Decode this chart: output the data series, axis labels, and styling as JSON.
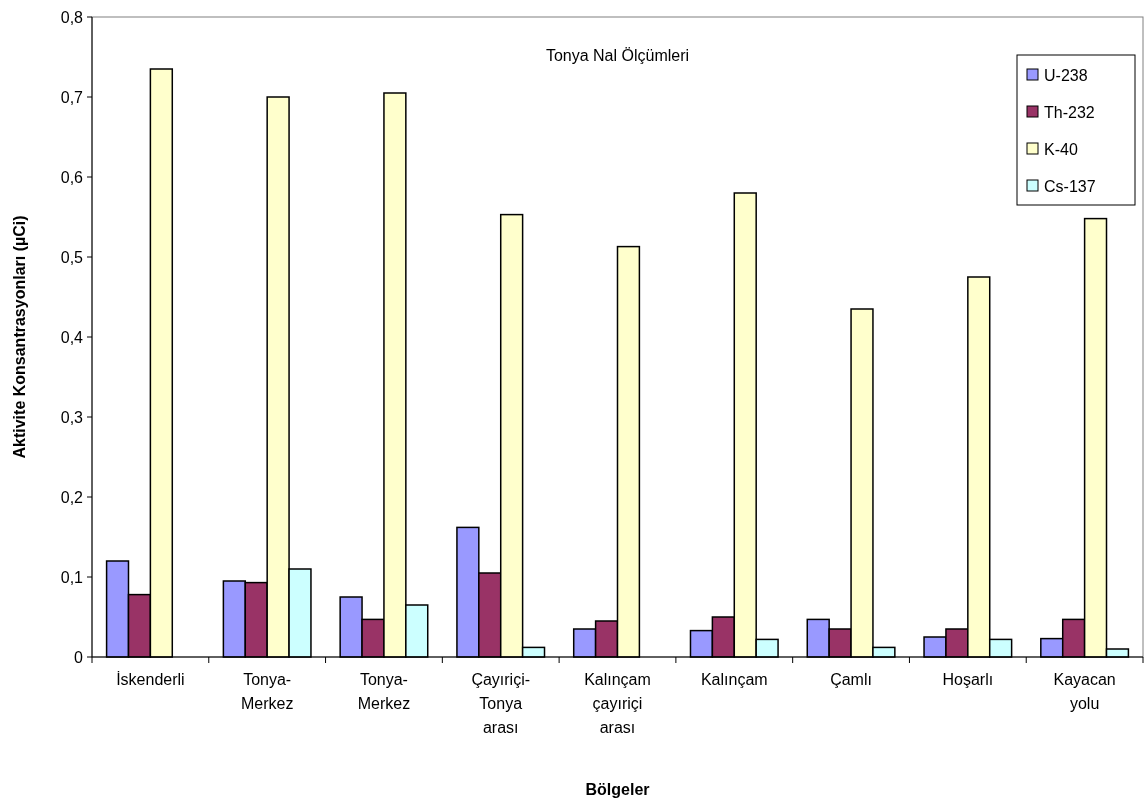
{
  "chart_data": {
    "type": "bar",
    "title": "Tonya Nal Ölçümleri",
    "xlabel": "Bölgeler",
    "ylabel": "Aktivite Konsantrasyonları (µCi)",
    "categories": [
      "İskenderli",
      "Tonya-Merkez",
      "Tonya-Merkez",
      "Çayıriçi-Tonya arası",
      "Kalınçam çayıriçi arası",
      "Kalınçam",
      "Çamlı",
      "Hoşarlı",
      "Kayacan yolu"
    ],
    "series": [
      {
        "name": "U-238",
        "color": "#9999ff",
        "values": [
          0.12,
          0.095,
          0.075,
          0.162,
          0.035,
          0.033,
          0.047,
          0.025,
          0.023
        ]
      },
      {
        "name": "Th-232",
        "color": "#993366",
        "values": [
          0.078,
          0.093,
          0.047,
          0.105,
          0.045,
          0.05,
          0.035,
          0.035,
          0.047
        ]
      },
      {
        "name": "K-40",
        "color": "#ffffcc",
        "values": [
          0.735,
          0.7,
          0.705,
          0.553,
          0.513,
          0.58,
          0.435,
          0.475,
          0.548
        ]
      },
      {
        "name": "Cs-137",
        "color": "#ccffff",
        "values": [
          null,
          0.11,
          0.065,
          0.012,
          null,
          0.022,
          0.012,
          0.022,
          0.01
        ]
      }
    ],
    "ylim": [
      0,
      0.8
    ],
    "yticks": [
      {
        "value": 0,
        "label": "0"
      },
      {
        "value": 0.1,
        "label": "0,1"
      },
      {
        "value": 0.2,
        "label": "0,2"
      },
      {
        "value": 0.3,
        "label": "0,3"
      },
      {
        "value": 0.4,
        "label": "0,4"
      },
      {
        "value": 0.5,
        "label": "0,5"
      },
      {
        "value": 0.6,
        "label": "0,6"
      },
      {
        "value": 0.7,
        "label": "0,7"
      },
      {
        "value": 0.8,
        "label": "0,8"
      }
    ],
    "grid": false,
    "legend": "top right"
  }
}
